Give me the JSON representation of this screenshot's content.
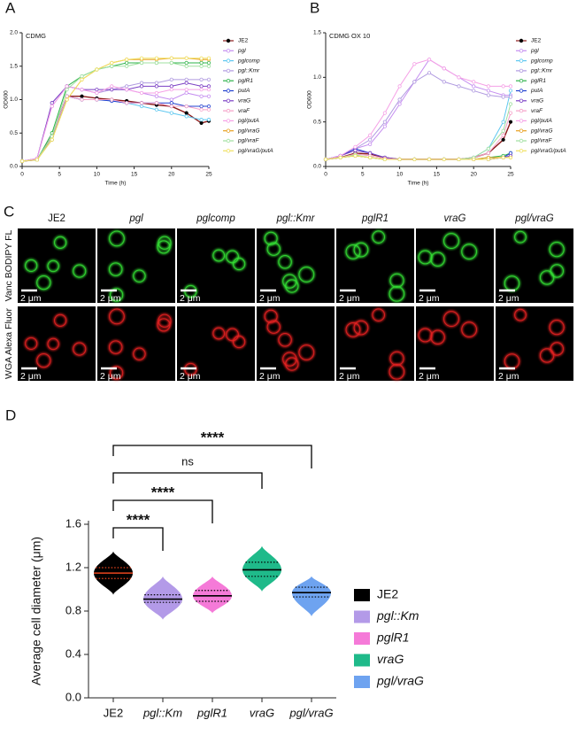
{
  "panel_labels": [
    "A",
    "B",
    "C",
    "D"
  ],
  "chart_data": [
    {
      "type": "line",
      "title": "CDMG",
      "x_label": "Time (h)",
      "y_label": "OD600",
      "x": [
        0,
        2,
        4,
        6,
        8,
        10,
        12,
        14,
        16,
        18,
        20,
        22,
        24,
        25
      ],
      "xlim": [
        0,
        25
      ],
      "xticks": [
        0,
        5,
        10,
        15,
        20,
        25
      ],
      "ylim": [
        0,
        2
      ],
      "yticks": [
        {
          "value": 0,
          "label": "0.0"
        },
        0.5,
        {
          "value": 1,
          "label": "1.0"
        },
        1.5,
        {
          "value": 2,
          "label": "2.0"
        }
      ],
      "series": [
        {
          "name": "JE2",
          "color": "#8b1a1a",
          "values": [
            0.08,
            0.1,
            0.45,
            1.05,
            1.05,
            1.02,
            1.0,
            0.98,
            0.95,
            0.92,
            0.9,
            0.8,
            0.65,
            0.68
          ]
        },
        {
          "name": "pgl",
          "color": "#c58ef0",
          "values": [
            0.08,
            0.12,
            0.9,
            1.2,
            1.15,
            1.1,
            1.15,
            1.15,
            1.1,
            1.05,
            1.0,
            1.1,
            1.05,
            1.05
          ]
        },
        {
          "name": "pglcomp",
          "color": "#5ec8f0",
          "values": [
            0.08,
            0.1,
            0.4,
            1.05,
            1.0,
            1.0,
            0.98,
            0.95,
            0.9,
            0.85,
            0.8,
            0.75,
            0.7,
            0.7
          ]
        },
        {
          "name": "pgl::Kmr",
          "color": "#b09ae0",
          "values": [
            0.08,
            0.12,
            0.95,
            1.2,
            1.15,
            1.1,
            1.15,
            1.2,
            1.25,
            1.25,
            1.3,
            1.3,
            1.3,
            1.3
          ]
        },
        {
          "name": "pglR1",
          "color": "#2db34a",
          "values": [
            0.08,
            0.1,
            0.5,
            1.2,
            1.35,
            1.45,
            1.5,
            1.55,
            1.55,
            1.55,
            1.55,
            1.55,
            1.55,
            1.55
          ]
        },
        {
          "name": "putA",
          "color": "#2040d0",
          "values": [
            0.08,
            0.1,
            0.45,
            1.05,
            1.0,
            1.0,
            0.98,
            0.95,
            0.95,
            0.95,
            0.95,
            0.9,
            0.9,
            0.9
          ]
        },
        {
          "name": "vraG",
          "color": "#7b3fc4",
          "values": [
            0.08,
            0.12,
            0.95,
            1.2,
            1.15,
            1.15,
            1.15,
            1.15,
            1.2,
            1.2,
            1.2,
            1.25,
            1.2,
            1.2
          ]
        },
        {
          "name": "vraF",
          "color": "#f5a0c8",
          "values": [
            0.08,
            0.1,
            0.45,
            1.05,
            1.0,
            1.0,
            1.0,
            0.95,
            0.95,
            0.95,
            0.9,
            0.9,
            0.85,
            0.85
          ]
        },
        {
          "name": "pgl/putA",
          "color": "#f5a0e6",
          "values": [
            0.08,
            0.12,
            0.9,
            1.2,
            1.15,
            1.1,
            1.2,
            1.15,
            1.1,
            1.1,
            1.15,
            1.15,
            1.15,
            1.15
          ]
        },
        {
          "name": "pgl/vraG",
          "color": "#e8a020",
          "values": [
            0.08,
            0.1,
            0.4,
            1.0,
            1.3,
            1.45,
            1.55,
            1.6,
            1.6,
            1.6,
            1.62,
            1.62,
            1.6,
            1.6
          ]
        },
        {
          "name": "pgl/vraF",
          "color": "#a0e0a0",
          "values": [
            0.08,
            0.1,
            0.45,
            1.15,
            1.35,
            1.45,
            1.5,
            1.5,
            1.55,
            1.55,
            1.55,
            1.5,
            1.5,
            1.5
          ]
        },
        {
          "name": "pgl/vraG/putA",
          "color": "#f0e060",
          "values": [
            0.08,
            0.1,
            0.4,
            1.0,
            1.3,
            1.45,
            1.55,
            1.6,
            1.62,
            1.62,
            1.62,
            1.62,
            1.62,
            1.62
          ]
        }
      ]
    },
    {
      "type": "line",
      "title": "CDMG OX 10",
      "x_label": "Time (h)",
      "y_label": "OD600",
      "x": [
        0,
        2,
        4,
        6,
        8,
        10,
        12,
        14,
        16,
        18,
        20,
        22,
        24,
        25
      ],
      "xlim": [
        0,
        25
      ],
      "xticks": [
        0,
        5,
        10,
        15,
        20,
        25
      ],
      "ylim": [
        0,
        1.5
      ],
      "yticks": [
        {
          "value": 0,
          "label": "0.0"
        },
        0.5,
        {
          "value": 1,
          "label": "1.0"
        },
        1.5
      ],
      "series": [
        {
          "name": "JE2",
          "color": "#8b1a1a",
          "values": [
            0.08,
            0.1,
            0.15,
            0.14,
            0.1,
            0.08,
            0.08,
            0.08,
            0.08,
            0.08,
            0.1,
            0.15,
            0.3,
            0.5
          ]
        },
        {
          "name": "pgl",
          "color": "#c58ef0",
          "values": [
            0.08,
            0.12,
            0.2,
            0.25,
            0.45,
            0.7,
            0.95,
            1.2,
            1.1,
            1.0,
            0.9,
            0.85,
            0.8,
            0.8
          ]
        },
        {
          "name": "pglcomp",
          "color": "#5ec8f0",
          "values": [
            0.08,
            0.1,
            0.12,
            0.1,
            0.08,
            0.08,
            0.08,
            0.08,
            0.08,
            0.08,
            0.1,
            0.2,
            0.5,
            0.85
          ]
        },
        {
          "name": "pgl::Kmr",
          "color": "#b09ae0",
          "values": [
            0.08,
            0.12,
            0.2,
            0.3,
            0.5,
            0.75,
            0.95,
            1.05,
            0.95,
            0.9,
            0.85,
            0.8,
            0.78,
            0.78
          ]
        },
        {
          "name": "pglR1",
          "color": "#2db34a",
          "values": [
            0.08,
            0.1,
            0.12,
            0.1,
            0.08,
            0.08,
            0.08,
            0.08,
            0.08,
            0.08,
            0.08,
            0.1,
            0.12,
            0.15
          ]
        },
        {
          "name": "putA",
          "color": "#2040d0",
          "values": [
            0.08,
            0.12,
            0.2,
            0.15,
            0.1,
            0.08,
            0.08,
            0.08,
            0.08,
            0.08,
            0.08,
            0.08,
            0.1,
            0.15
          ]
        },
        {
          "name": "vraG",
          "color": "#7b3fc4",
          "values": [
            0.08,
            0.12,
            0.18,
            0.15,
            0.1,
            0.08,
            0.08,
            0.08,
            0.08,
            0.08,
            0.08,
            0.08,
            0.1,
            0.12
          ]
        },
        {
          "name": "vraF",
          "color": "#f5a0c8",
          "values": [
            0.08,
            0.1,
            0.14,
            0.12,
            0.09,
            0.08,
            0.08,
            0.08,
            0.08,
            0.08,
            0.1,
            0.15,
            0.35,
            0.6
          ]
        },
        {
          "name": "pgl/putA",
          "color": "#f5a0e6",
          "values": [
            0.08,
            0.12,
            0.22,
            0.35,
            0.6,
            0.9,
            1.15,
            1.2,
            1.1,
            1.0,
            0.95,
            0.9,
            0.9,
            0.9
          ]
        },
        {
          "name": "pgl/vraG",
          "color": "#e8a020",
          "values": [
            0.08,
            0.1,
            0.12,
            0.1,
            0.08,
            0.08,
            0.08,
            0.08,
            0.08,
            0.08,
            0.08,
            0.1,
            0.1,
            0.1
          ]
        },
        {
          "name": "pgl/vraF",
          "color": "#a0e0a0",
          "values": [
            0.08,
            0.1,
            0.13,
            0.1,
            0.08,
            0.08,
            0.08,
            0.08,
            0.08,
            0.08,
            0.1,
            0.2,
            0.4,
            0.7
          ]
        },
        {
          "name": "pgl/vraG/putA",
          "color": "#f0e060",
          "values": [
            0.08,
            0.1,
            0.12,
            0.1,
            0.08,
            0.08,
            0.08,
            0.08,
            0.08,
            0.08,
            0.08,
            0.08,
            0.1,
            0.1
          ]
        }
      ]
    },
    {
      "type": "violin",
      "y_label": "Average cell diameter (μm)",
      "categories": [
        "JE2",
        "pgl::Km",
        "pglR1",
        "vraG",
        "pgl/vraG"
      ],
      "colors": [
        "#000000",
        "#b39ae8",
        "#f57ad8",
        "#1fba8a",
        "#6ea3f0"
      ],
      "ylim": [
        0,
        1.6
      ],
      "yticks": [
        {
          "value": 0,
          "label": "0.0"
        },
        0.4,
        0.8,
        1.2,
        1.6
      ],
      "median": [
        1.15,
        0.91,
        0.94,
        1.18,
        0.97
      ],
      "q1": [
        1.1,
        0.88,
        0.89,
        1.12,
        0.93
      ],
      "q3": [
        1.2,
        0.95,
        0.99,
        1.25,
        1.02
      ],
      "min": [
        0.95,
        0.72,
        0.78,
        0.98,
        0.75
      ],
      "max": [
        1.35,
        1.12,
        1.12,
        1.4,
        1.12
      ],
      "significance": [
        null,
        "****",
        "****",
        "ns",
        "****"
      ]
    }
  ],
  "microscopy": {
    "columns": [
      "JE2",
      "pgl",
      "pglcomp",
      "pgl::Kmr",
      "pglR1",
      "vraG",
      "pgl/vraG"
    ],
    "rows": [
      "Vanc BODIPY FL",
      "WGA Alexa Fluor"
    ],
    "scale_bar": "2 μm"
  }
}
